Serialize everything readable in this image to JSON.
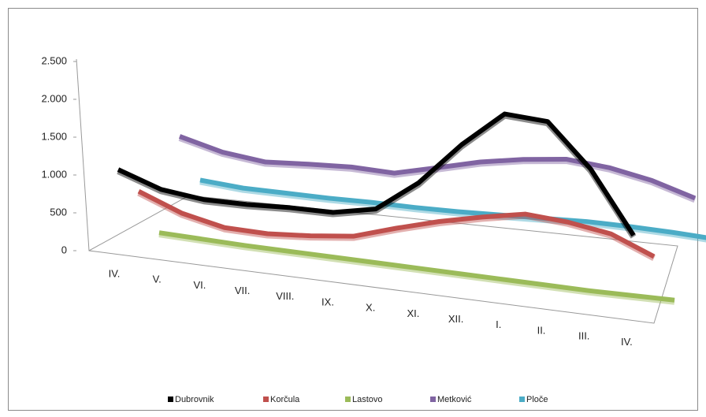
{
  "chart_data": {
    "type": "line3d",
    "categories": [
      "IV.",
      "V.",
      "VI.",
      "VII.",
      "VIII.",
      "IX.",
      "X.",
      "XI.",
      "XII.",
      "I.",
      "II.",
      "III.",
      "IV."
    ],
    "series": [
      {
        "name": "Dubrovnik",
        "color": "#000000",
        "values": [
          1030,
          830,
          760,
          760,
          780,
          780,
          880,
          1250,
          1750,
          2150,
          2100,
          1600,
          900
        ]
      },
      {
        "name": "Korčula",
        "color": "#c0504d",
        "values": [
          670,
          450,
          330,
          320,
          360,
          420,
          580,
          720,
          830,
          920,
          880,
          800,
          600
        ]
      },
      {
        "name": "Lastovo",
        "color": "#9bbb59",
        "values": [
          50,
          40,
          30,
          30,
          30,
          30,
          30,
          30,
          30,
          30,
          30,
          40,
          50
        ]
      },
      {
        "name": "Metković",
        "color": "#8064a2",
        "values": [
          1250,
          1100,
          1030,
          1060,
          1080,
          1060,
          1180,
          1300,
          1380,
          1430,
          1380,
          1280,
          1130
        ]
      },
      {
        "name": "Ploče",
        "color": "#4bacc6",
        "values": [
          600,
          560,
          560,
          560,
          570,
          570,
          580,
          600,
          620,
          640,
          640,
          630,
          610
        ]
      }
    ],
    "ylim": [
      0,
      2500
    ],
    "yticks": [
      0,
      500,
      {
        "value": 1000,
        "label": "1.000"
      },
      {
        "value": 1500,
        "label": "1.500"
      },
      {
        "value": 2000,
        "label": "2.000"
      },
      {
        "value": 2500,
        "label": "2.500"
      }
    ],
    "grid": false,
    "legend": "bottom"
  }
}
